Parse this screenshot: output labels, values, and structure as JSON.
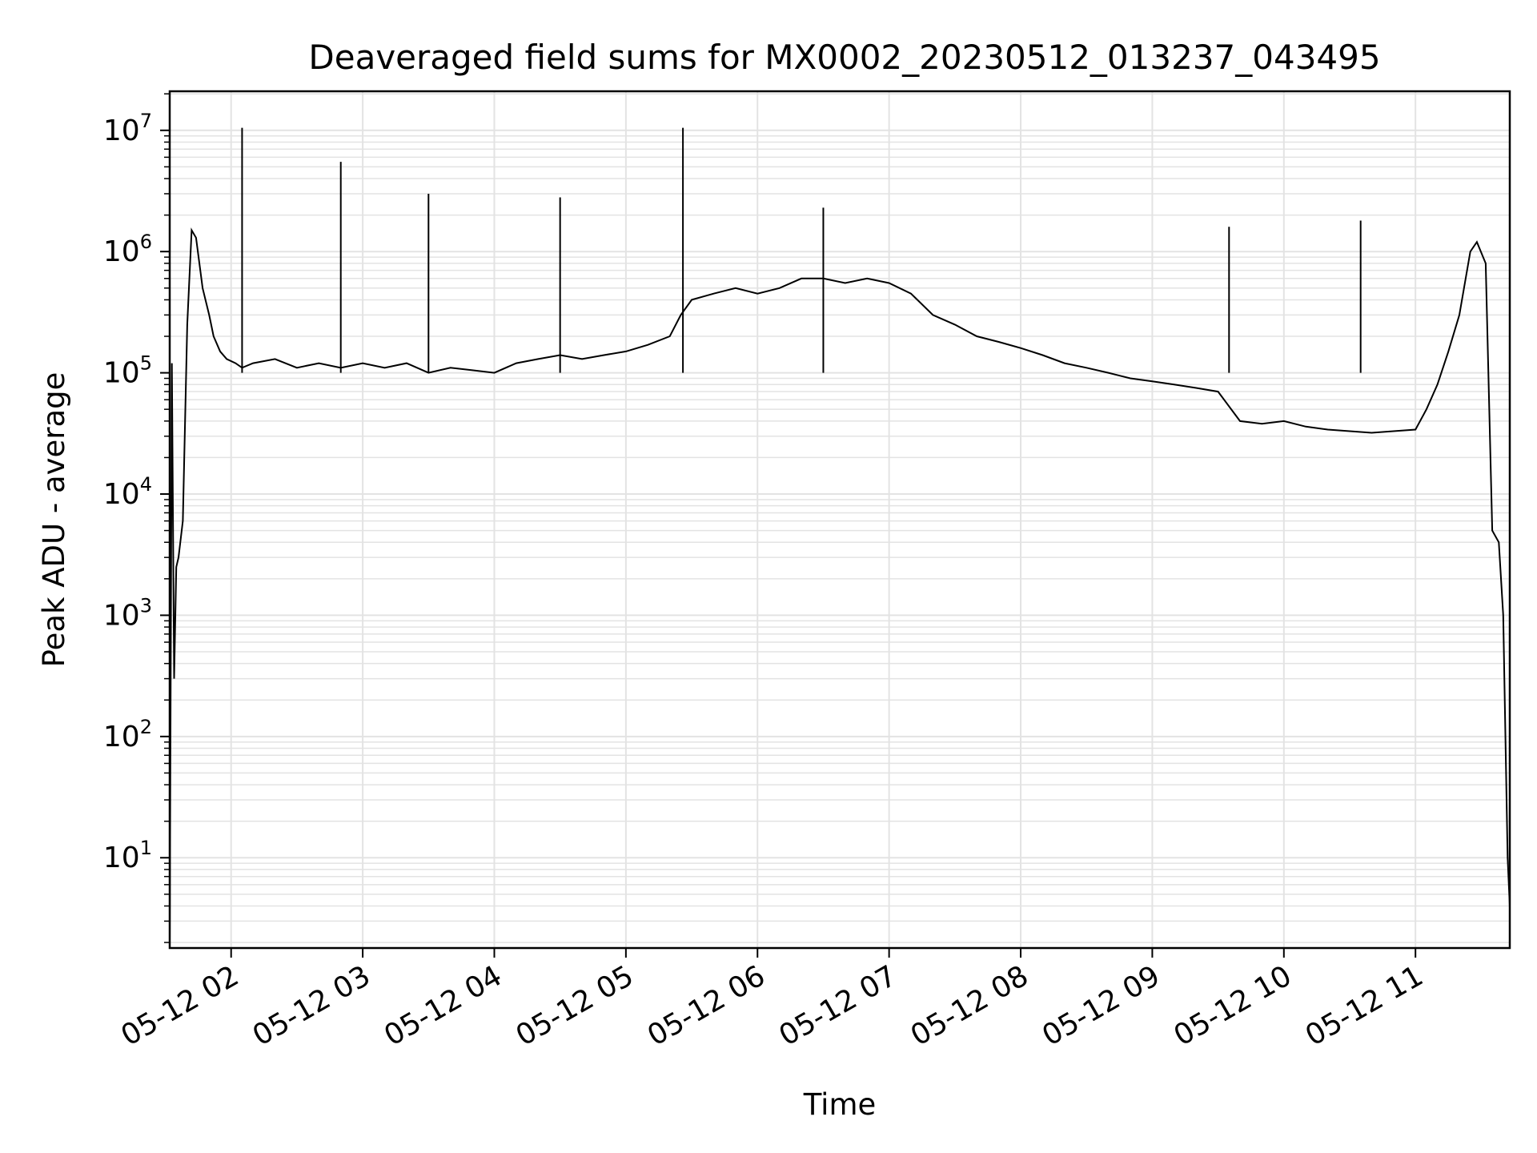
{
  "chart_data": {
    "type": "line",
    "title": "Deaveraged field sums for MX0002_20230512_013237_043495",
    "xlabel": "Time",
    "ylabel": "Peak ADU - average",
    "yscale": "log",
    "xlim": [
      "05-12 01:32",
      "05-12 11:43"
    ],
    "ylim": [
      1.8,
      21000000
    ],
    "grid": true,
    "colors": {
      "line": "#000000",
      "grid": "#e3e3e3"
    },
    "x_ticks": [
      {
        "at": "05-12 02:00",
        "label": "05-12 02"
      },
      {
        "at": "05-12 03:00",
        "label": "05-12 03"
      },
      {
        "at": "05-12 04:00",
        "label": "05-12 04"
      },
      {
        "at": "05-12 05:00",
        "label": "05-12 05"
      },
      {
        "at": "05-12 06:00",
        "label": "05-12 06"
      },
      {
        "at": "05-12 07:00",
        "label": "05-12 07"
      },
      {
        "at": "05-12 08:00",
        "label": "05-12 08"
      },
      {
        "at": "05-12 09:00",
        "label": "05-12 09"
      },
      {
        "at": "05-12 10:00",
        "label": "05-12 10"
      },
      {
        "at": "05-12 11:00",
        "label": "05-12 11"
      }
    ],
    "y_ticks": [
      {
        "value": 10,
        "base": "10",
        "exp": "1"
      },
      {
        "value": 100,
        "base": "10",
        "exp": "2"
      },
      {
        "value": 1000,
        "base": "10",
        "exp": "3"
      },
      {
        "value": 10000,
        "base": "10",
        "exp": "4"
      },
      {
        "value": 100000,
        "base": "10",
        "exp": "5"
      },
      {
        "value": 1000000,
        "base": "10",
        "exp": "6"
      },
      {
        "value": 10000000,
        "base": "10",
        "exp": "7"
      }
    ],
    "series": [
      {
        "x": [
          "05-12 01:32",
          "05-12 01:33",
          "05-12 01:34",
          "05-12 01:35",
          "05-12 01:36",
          "05-12 01:38",
          "05-12 01:40",
          "05-12 01:42",
          "05-12 01:44",
          "05-12 01:47",
          "05-12 01:50",
          "05-12 01:52",
          "05-12 01:55",
          "05-12 01:58",
          "05-12 02:02",
          "05-12 02:05",
          "05-12 02:10",
          "05-12 02:20",
          "05-12 02:30",
          "05-12 02:40",
          "05-12 02:50",
          "05-12 03:00",
          "05-12 03:10",
          "05-12 03:20",
          "05-12 03:30",
          "05-12 03:40",
          "05-12 03:50",
          "05-12 04:00",
          "05-12 04:10",
          "05-12 04:20",
          "05-12 04:30",
          "05-12 04:40",
          "05-12 04:50",
          "05-12 05:00",
          "05-12 05:10",
          "05-12 05:20",
          "05-12 05:25",
          "05-12 05:30",
          "05-12 05:40",
          "05-12 05:50",
          "05-12 06:00",
          "05-12 06:10",
          "05-12 06:20",
          "05-12 06:30",
          "05-12 06:40",
          "05-12 06:50",
          "05-12 07:00",
          "05-12 07:10",
          "05-12 07:20",
          "05-12 07:30",
          "05-12 07:40",
          "05-12 07:50",
          "05-12 08:00",
          "05-12 08:10",
          "05-12 08:20",
          "05-12 08:30",
          "05-12 08:40",
          "05-12 08:50",
          "05-12 09:00",
          "05-12 09:10",
          "05-12 09:20",
          "05-12 09:30",
          "05-12 09:40",
          "05-12 09:50",
          "05-12 10:00",
          "05-12 10:10",
          "05-12 10:20",
          "05-12 10:30",
          "05-12 10:40",
          "05-12 10:50",
          "05-12 11:00",
          "05-12 11:05",
          "05-12 11:10",
          "05-12 11:15",
          "05-12 11:20",
          "05-12 11:25",
          "05-12 11:28",
          "05-12 11:32",
          "05-12 11:35",
          "05-12 11:38",
          "05-12 11:40",
          "05-12 11:42",
          "05-12 11:43"
        ],
        "y": [
          2,
          120000,
          300,
          2500,
          3000,
          6000,
          250000,
          1500000,
          1300000,
          500000,
          300000,
          200000,
          150000,
          130000,
          120000,
          110000,
          120000,
          130000,
          110000,
          120000,
          110000,
          120000,
          110000,
          120000,
          100000,
          110000,
          105000,
          100000,
          120000,
          130000,
          140000,
          130000,
          140000,
          150000,
          170000,
          200000,
          300000,
          400000,
          450000,
          500000,
          450000,
          500000,
          600000,
          600000,
          550000,
          600000,
          550000,
          450000,
          300000,
          250000,
          200000,
          180000,
          160000,
          140000,
          120000,
          110000,
          100000,
          90000,
          85000,
          80000,
          75000,
          70000,
          40000,
          38000,
          40000,
          36000,
          34000,
          33000,
          32000,
          33000,
          34000,
          50000,
          80000,
          150000,
          300000,
          1000000,
          1200000,
          800000,
          5000,
          4000,
          1000,
          10,
          4
        ]
      }
    ],
    "spikes": [
      {
        "x": "05-12 02:05",
        "y": 10500000
      },
      {
        "x": "05-12 02:50",
        "y": 5500000
      },
      {
        "x": "05-12 05:26",
        "y": 10500000
      },
      {
        "x": "05-12 03:30",
        "y": 3000000
      },
      {
        "x": "05-12 04:30",
        "y": 2800000
      },
      {
        "x": "05-12 06:30",
        "y": 2300000
      },
      {
        "x": "05-12 09:35",
        "y": 1600000
      },
      {
        "x": "05-12 10:35",
        "y": 1800000
      }
    ]
  }
}
